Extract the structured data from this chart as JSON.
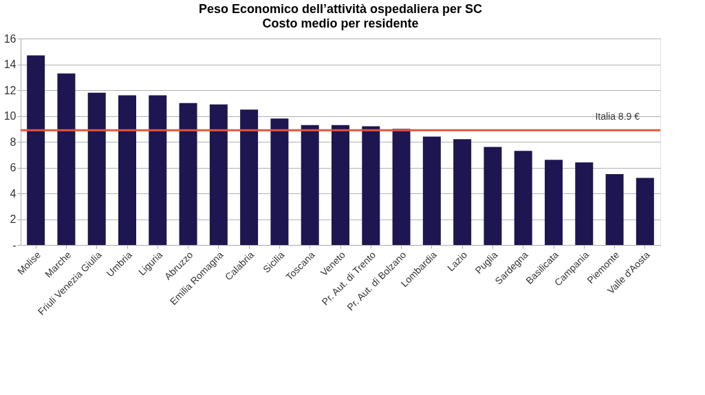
{
  "chart_data": {
    "type": "bar",
    "title": "Peso Economico dell’attività ospedaliera per SC",
    "subtitle": "Costo medio per residente",
    "categories": [
      "Molise",
      "Marche",
      "Friuli Venezia Giulia",
      "Umbria",
      "Liguria",
      "Abruzzo",
      "Emilia Romagna",
      "Calabria",
      "Sicilia",
      "Toscana",
      "Veneto",
      "Pr. Aut. di Trento",
      "Pr. Aut. di Bolzano",
      "Lombardia",
      "Lazio",
      "Puglia",
      "Sardegna",
      "Basilicata",
      "Campania",
      "Piemonte",
      "Valle d'Aosta"
    ],
    "values": [
      14.7,
      13.3,
      11.8,
      11.6,
      11.6,
      11.0,
      10.9,
      10.5,
      9.8,
      9.3,
      9.3,
      9.2,
      9.0,
      8.4,
      8.2,
      7.6,
      7.3,
      6.6,
      6.4,
      5.5,
      5.2
    ],
    "color": "#1e1650",
    "ylim": [
      0,
      16
    ],
    "yticks": [
      {
        "value": 0,
        "label": "-"
      },
      2,
      4,
      6,
      8,
      10,
      12,
      14,
      16
    ],
    "grid": "y",
    "ref_lines": [
      {
        "axis": "y",
        "value": 8.9,
        "label": "Italia 8.9 €",
        "color": "#e8553a"
      }
    ]
  }
}
